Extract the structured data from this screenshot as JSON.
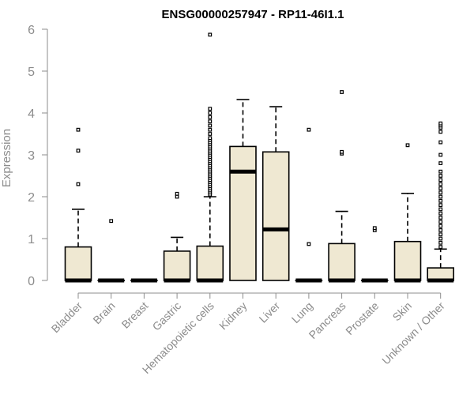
{
  "chart_data": {
    "type": "boxplot",
    "title": "ENSG00000257947 - RP11-46I1.1",
    "ylabel": "Expression",
    "ylim": [
      0,
      6
    ],
    "yticks": [
      0,
      1,
      2,
      3,
      4,
      5,
      6
    ],
    "box_color": "#efe8d2",
    "categories": [
      "Bladder",
      "Brain",
      "Breast",
      "Gastric",
      "Hematopoietic cells",
      "Kidney",
      "Liver",
      "Lung",
      "Pancreas",
      "Prostate",
      "Skin",
      "Unknown / Other"
    ],
    "boxes": [
      {
        "category": "Bladder",
        "min": 0,
        "q1": 0,
        "median": 0,
        "q3": 0.8,
        "max": 1.7,
        "outliers": [
          2.3,
          3.1,
          3.6
        ]
      },
      {
        "category": "Brain",
        "min": 0,
        "q1": 0,
        "median": 0,
        "q3": 0,
        "max": 0,
        "outliers": [
          1.42
        ]
      },
      {
        "category": "Breast",
        "min": 0,
        "q1": 0,
        "median": 0,
        "q3": 0,
        "max": 0,
        "outliers": []
      },
      {
        "category": "Gastric",
        "min": 0,
        "q1": 0,
        "median": 0,
        "q3": 0.7,
        "max": 1.03,
        "outliers": [
          2.0,
          2.07
        ]
      },
      {
        "category": "Hematopoietic cells",
        "min": 0,
        "q1": 0,
        "median": 0,
        "q3": 0.82,
        "max": 2.0,
        "outliers": [
          2.05,
          2.1,
          2.15,
          2.2,
          2.25,
          2.3,
          2.35,
          2.4,
          2.45,
          2.5,
          2.55,
          2.6,
          2.65,
          2.7,
          2.75,
          2.8,
          2.85,
          2.9,
          2.95,
          3.0,
          3.05,
          3.1,
          3.15,
          3.2,
          3.25,
          3.3,
          3.35,
          3.4,
          3.5,
          3.6,
          3.7,
          3.8,
          3.9,
          4.0,
          4.1,
          5.87
        ]
      },
      {
        "category": "Kidney",
        "min": 0,
        "q1": 0,
        "median": 2.6,
        "q3": 3.2,
        "max": 4.32,
        "outliers": []
      },
      {
        "category": "Liver",
        "min": 0,
        "q1": 0,
        "median": 1.22,
        "q3": 3.07,
        "max": 4.15,
        "outliers": []
      },
      {
        "category": "Lung",
        "min": 0,
        "q1": 0,
        "median": 0,
        "q3": 0,
        "max": 0,
        "outliers": [
          0.87,
          3.6
        ]
      },
      {
        "category": "Pancreas",
        "min": 0,
        "q1": 0,
        "median": 0,
        "q3": 0.88,
        "max": 1.65,
        "outliers": [
          3.03,
          3.07,
          4.5
        ]
      },
      {
        "category": "Prostate",
        "min": 0,
        "q1": 0,
        "median": 0,
        "q3": 0,
        "max": 0,
        "outliers": [
          1.2,
          1.25
        ]
      },
      {
        "category": "Skin",
        "min": 0,
        "q1": 0,
        "median": 0,
        "q3": 0.93,
        "max": 2.08,
        "outliers": [
          3.23
        ]
      },
      {
        "category": "Unknown / Other",
        "min": 0,
        "q1": 0,
        "median": 0,
        "q3": 0.3,
        "max": 0.75,
        "outliers": [
          0.8,
          0.9,
          1.0,
          1.1,
          1.2,
          1.3,
          1.4,
          1.5,
          1.6,
          1.7,
          1.8,
          1.9,
          2.0,
          2.1,
          2.2,
          2.3,
          2.4,
          2.5,
          2.6,
          2.8,
          3.0,
          3.3,
          3.55,
          3.65,
          3.7,
          3.75
        ]
      }
    ]
  }
}
